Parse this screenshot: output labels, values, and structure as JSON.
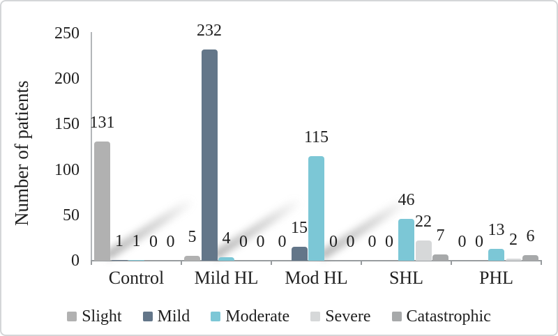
{
  "chart_data": {
    "type": "bar",
    "title": "",
    "xlabel": "",
    "ylabel": "Number of patients",
    "ylim": [
      0,
      250
    ],
    "yticks": [
      0,
      50,
      100,
      150,
      200,
      250
    ],
    "grid": false,
    "legend_position": "bottom",
    "categories": [
      "Control",
      "Mild HL",
      "Mod HL",
      "SHL",
      "PHL"
    ],
    "series": [
      {
        "name": "Slight",
        "color": "#b1b1b1",
        "values": [
          131,
          5,
          0,
          0,
          0
        ]
      },
      {
        "name": "Mild",
        "color": "#637689",
        "values": [
          1,
          232,
          15,
          0,
          0
        ]
      },
      {
        "name": "Moderate",
        "color": "#7cc7d6",
        "values": [
          1,
          4,
          115,
          46,
          13
        ]
      },
      {
        "name": "Severe",
        "color": "#d6d8d9",
        "values": [
          0,
          0,
          0,
          22,
          2
        ]
      },
      {
        "name": "Catastrophic",
        "color": "#a7a9aa",
        "values": [
          0,
          0,
          0,
          7,
          6
        ]
      }
    ],
    "style": {
      "text_color": "#1f1f1f",
      "axis_color": "#989c9f",
      "axis_line_color": "#b3b6b9",
      "frame_border_color": "#d4d6d8"
    }
  }
}
